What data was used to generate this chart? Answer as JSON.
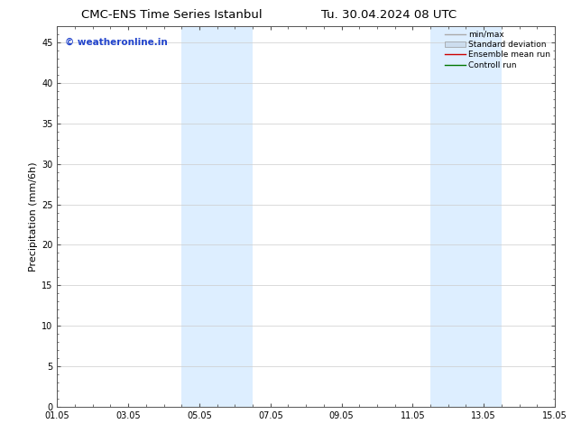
{
  "title_left": "CMC-ENS Time Series Istanbul",
  "title_right": "Tu. 30.04.2024 08 UTC",
  "ylabel": "Precipitation (mm/6h)",
  "watermark": "© weatheronline.in",
  "watermark_color": "#2244cc",
  "xlim_start": 0,
  "xlim_end": 14,
  "ylim": [
    0,
    47
  ],
  "yticks": [
    0,
    5,
    10,
    15,
    20,
    25,
    30,
    35,
    40,
    45
  ],
  "xtick_labels": [
    "01.05",
    "03.05",
    "05.05",
    "07.05",
    "09.05",
    "11.05",
    "13.05",
    "15.05"
  ],
  "xtick_positions": [
    0,
    2,
    4,
    6,
    8,
    10,
    12,
    14
  ],
  "shaded_regions": [
    {
      "xmin": 3.5,
      "xmax": 5.5
    },
    {
      "xmin": 10.5,
      "xmax": 12.5
    }
  ],
  "shaded_color": "#ddeeff",
  "bg_color": "#ffffff",
  "plot_bg_color": "#ffffff",
  "grid_color": "#cccccc",
  "legend_entries": [
    {
      "label": "min/max",
      "color": "#aaaaaa",
      "style": "line",
      "lw": 1.0
    },
    {
      "label": "Standard deviation",
      "color": "#ccddee",
      "style": "box"
    },
    {
      "label": "Ensemble mean run",
      "color": "#cc0000",
      "style": "line",
      "lw": 1.0
    },
    {
      "label": "Controll run",
      "color": "#007700",
      "style": "line",
      "lw": 1.0
    }
  ],
  "title_fontsize": 9.5,
  "ylabel_fontsize": 8,
  "tick_fontsize": 7,
  "watermark_fontsize": 7.5,
  "legend_fontsize": 6.5
}
